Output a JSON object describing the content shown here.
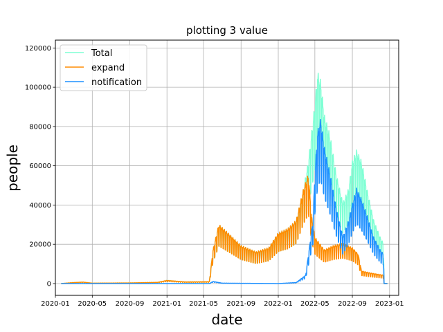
{
  "chart_data": {
    "type": "line",
    "title": "plotting 3 value",
    "xlabel": "date",
    "ylabel": "people",
    "xlim": [
      "2020-01-01",
      "2023-01-31"
    ],
    "ylim": [
      -6000,
      124000
    ],
    "x_ticks": [
      "2020-01",
      "2020-05",
      "2020-09",
      "2021-01",
      "2021-05",
      "2021-09",
      "2022-01",
      "2022-05",
      "2022-09",
      "2023-01"
    ],
    "y_ticks": [
      0,
      20000,
      40000,
      60000,
      80000,
      100000,
      120000
    ],
    "grid": true,
    "legend_position": "top-left",
    "series": [
      {
        "name": "Total",
        "color": "#7fffd4",
        "style": "oscillating",
        "points": [
          [
            "2020-01-20",
            0
          ],
          [
            "2020-03-01",
            500
          ],
          [
            "2020-04-01",
            700
          ],
          [
            "2020-05-01",
            200
          ],
          [
            "2020-09-01",
            300
          ],
          [
            "2020-12-01",
            600
          ],
          [
            "2021-01-01",
            1500
          ],
          [
            "2021-03-01",
            800
          ],
          [
            "2021-05-20",
            900
          ],
          [
            "2021-06-01",
            16000
          ],
          [
            "2021-06-20",
            28000
          ],
          [
            "2021-07-20",
            24000
          ],
          [
            "2021-09-01",
            18000
          ],
          [
            "2021-10-20",
            15000
          ],
          [
            "2021-12-01",
            17000
          ],
          [
            "2022-01-01",
            24000
          ],
          [
            "2022-02-01",
            26000
          ],
          [
            "2022-03-01",
            30000
          ],
          [
            "2022-03-25",
            45000
          ],
          [
            "2022-04-10",
            58000
          ],
          [
            "2022-05-01",
            85000
          ],
          [
            "2022-05-10",
            100000
          ],
          [
            "2022-05-20",
            96000
          ],
          [
            "2022-06-01",
            80000
          ],
          [
            "2022-06-20",
            70000
          ],
          [
            "2022-07-10",
            52000
          ],
          [
            "2022-08-01",
            38000
          ],
          [
            "2022-08-20",
            45000
          ],
          [
            "2022-09-01",
            58000
          ],
          [
            "2022-09-15",
            63000
          ],
          [
            "2022-10-01",
            58000
          ],
          [
            "2022-10-20",
            44000
          ],
          [
            "2022-11-10",
            30000
          ],
          [
            "2022-12-01",
            22000
          ],
          [
            "2022-12-12",
            19000
          ],
          [
            "2022-12-14",
            0
          ],
          [
            "2022-12-25",
            0
          ]
        ]
      },
      {
        "name": "expand",
        "color": "#ff8c00",
        "style": "oscillating",
        "points": [
          [
            "2020-01-20",
            0
          ],
          [
            "2020-03-01",
            500
          ],
          [
            "2020-04-01",
            700
          ],
          [
            "2020-05-01",
            200
          ],
          [
            "2020-09-01",
            300
          ],
          [
            "2020-12-01",
            600
          ],
          [
            "2021-01-01",
            1500
          ],
          [
            "2021-03-01",
            800
          ],
          [
            "2021-05-20",
            900
          ],
          [
            "2021-06-01",
            16000
          ],
          [
            "2021-06-20",
            28000
          ],
          [
            "2021-07-20",
            24000
          ],
          [
            "2021-09-01",
            18000
          ],
          [
            "2021-10-20",
            15000
          ],
          [
            "2021-12-01",
            17000
          ],
          [
            "2022-01-01",
            24000
          ],
          [
            "2022-02-01",
            26000
          ],
          [
            "2022-03-01",
            30000
          ],
          [
            "2022-03-25",
            45000
          ],
          [
            "2022-04-10",
            52000
          ],
          [
            "2022-04-20",
            32000
          ],
          [
            "2022-05-01",
            22000
          ],
          [
            "2022-06-01",
            16000
          ],
          [
            "2022-07-01",
            18000
          ],
          [
            "2022-08-01",
            19000
          ],
          [
            "2022-09-01",
            17000
          ],
          [
            "2022-09-20",
            14000
          ],
          [
            "2022-10-01",
            6000
          ],
          [
            "2022-11-01",
            5000
          ],
          [
            "2022-12-12",
            4000
          ],
          [
            "2022-12-14",
            0
          ],
          [
            "2022-12-25",
            0
          ]
        ]
      },
      {
        "name": "notification",
        "color": "#1e90ff",
        "style": "oscillating",
        "points": [
          [
            "2020-01-20",
            0
          ],
          [
            "2021-05-20",
            0
          ],
          [
            "2021-06-01",
            1000
          ],
          [
            "2021-07-01",
            200
          ],
          [
            "2022-01-01",
            0
          ],
          [
            "2022-03-01",
            500
          ],
          [
            "2022-04-01",
            4000
          ],
          [
            "2022-04-25",
            30000
          ],
          [
            "2022-05-01",
            52000
          ],
          [
            "2022-05-10",
            72000
          ],
          [
            "2022-05-20",
            78000
          ],
          [
            "2022-06-01",
            65000
          ],
          [
            "2022-06-20",
            52000
          ],
          [
            "2022-07-10",
            36000
          ],
          [
            "2022-08-01",
            22000
          ],
          [
            "2022-08-20",
            30000
          ],
          [
            "2022-09-01",
            38000
          ],
          [
            "2022-09-15",
            45000
          ],
          [
            "2022-10-01",
            40000
          ],
          [
            "2022-10-20",
            32000
          ],
          [
            "2022-11-10",
            22000
          ],
          [
            "2022-12-01",
            16000
          ],
          [
            "2022-12-12",
            14000
          ],
          [
            "2022-12-14",
            0
          ],
          [
            "2022-12-25",
            0
          ]
        ]
      }
    ]
  }
}
